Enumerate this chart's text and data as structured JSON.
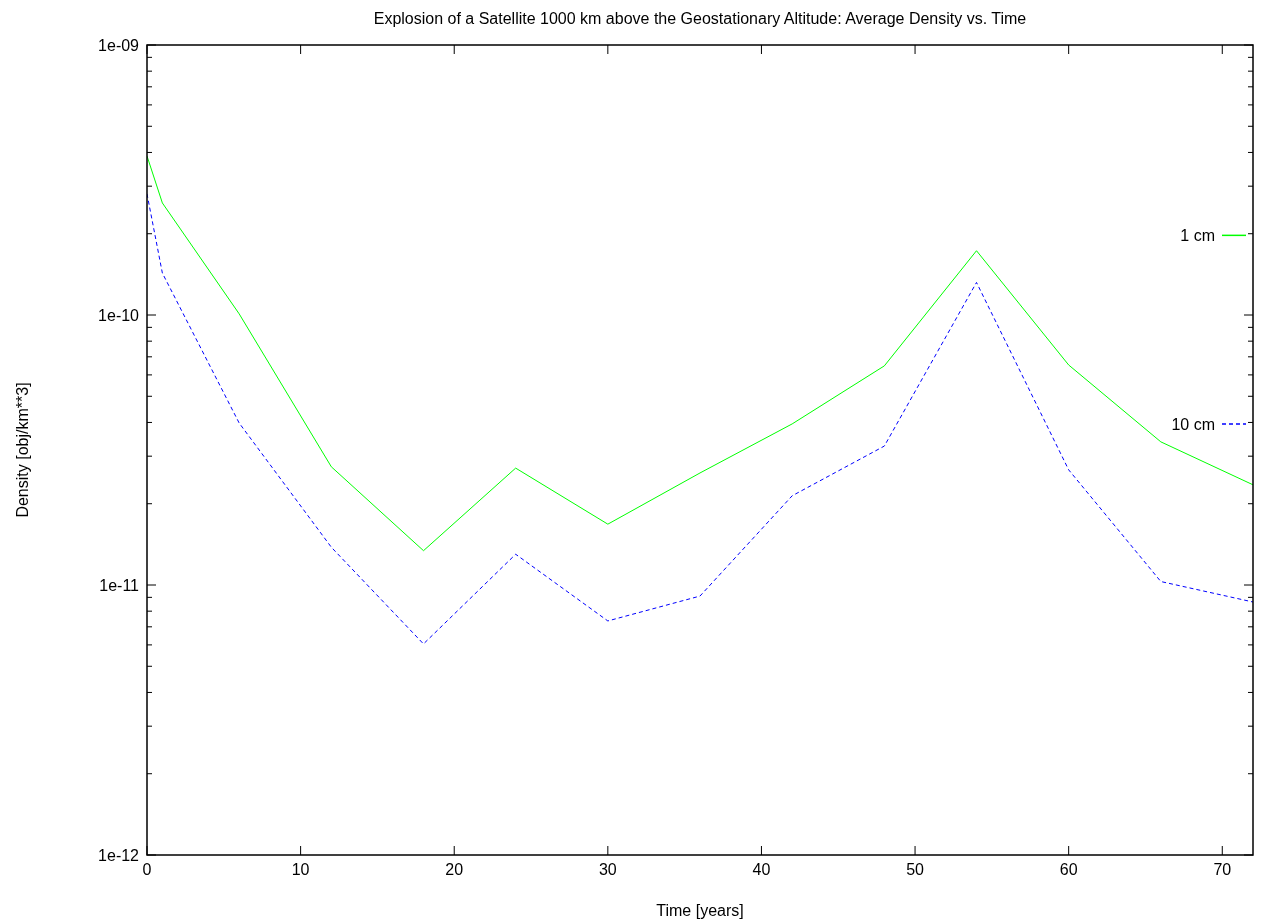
{
  "chart_data": {
    "type": "line",
    "title": "Explosion of a Satellite 1000 km above the Geostationary Altitude: Average Density vs. Time",
    "xlabel": "Time [years]",
    "ylabel": "Density [obj/km**3]",
    "x": [
      0,
      1,
      6,
      12,
      18,
      24,
      30,
      36,
      42,
      48,
      54,
      60,
      66,
      72
    ],
    "series": [
      {
        "name": "1 cm",
        "color": "#00ff00",
        "line_style": "solid",
        "values": [
          3.88e-10,
          2.6e-10,
          1.01e-10,
          2.74e-11,
          1.34e-11,
          2.71e-11,
          1.68e-11,
          2.6e-11,
          3.95e-11,
          6.48e-11,
          1.73e-10,
          6.53e-11,
          3.39e-11,
          2.35e-11
        ]
      },
      {
        "name": "10 cm",
        "color": "#0000ff",
        "line_style": "dashed",
        "values": [
          2.81e-10,
          1.43e-10,
          3.98e-11,
          1.38e-11,
          6.05e-12,
          1.3e-11,
          7.36e-12,
          9.1e-12,
          2.14e-11,
          3.27e-11,
          1.32e-10,
          2.67e-11,
          1.03e-11,
          8.65e-12
        ]
      }
    ],
    "log": true,
    "legend": "right",
    "grid": false,
    "marker": "none",
    "xlim": [
      0,
      72
    ],
    "xticks": [
      0,
      10,
      20,
      30,
      40,
      50,
      60,
      70
    ],
    "ylim": [
      1e-12,
      1e-09
    ],
    "yticks": [
      {
        "value": 1e-12,
        "label": "1e-12"
      },
      {
        "value": 2e-12,
        "label": null
      },
      {
        "value": 3e-12,
        "label": null
      },
      {
        "value": 4e-12,
        "label": null
      },
      {
        "value": 5e-12,
        "label": null
      },
      {
        "value": 6e-12,
        "label": null
      },
      {
        "value": 7e-12,
        "label": null
      },
      {
        "value": 8e-12,
        "label": null
      },
      {
        "value": 9e-12,
        "label": null
      },
      {
        "value": 1e-11,
        "label": "1e-11"
      },
      {
        "value": 2e-11,
        "label": null
      },
      {
        "value": 3e-11,
        "label": null
      },
      {
        "value": 4e-11,
        "label": null
      },
      {
        "value": 5e-11,
        "label": null
      },
      {
        "value": 6e-11,
        "label": null
      },
      {
        "value": 7e-11,
        "label": null
      },
      {
        "value": 8e-11,
        "label": null
      },
      {
        "value": 9e-11,
        "label": null
      },
      {
        "value": 1e-10,
        "label": "1e-10"
      },
      {
        "value": 2e-10,
        "label": null
      },
      {
        "value": 3e-10,
        "label": null
      },
      {
        "value": 4e-10,
        "label": null
      },
      {
        "value": 5e-10,
        "label": null
      },
      {
        "value": 6e-10,
        "label": null
      },
      {
        "value": 7e-10,
        "label": null
      },
      {
        "value": 8e-10,
        "label": null
      },
      {
        "value": 9e-10,
        "label": null
      },
      {
        "value": 1e-09,
        "label": "1e-09"
      }
    ]
  }
}
